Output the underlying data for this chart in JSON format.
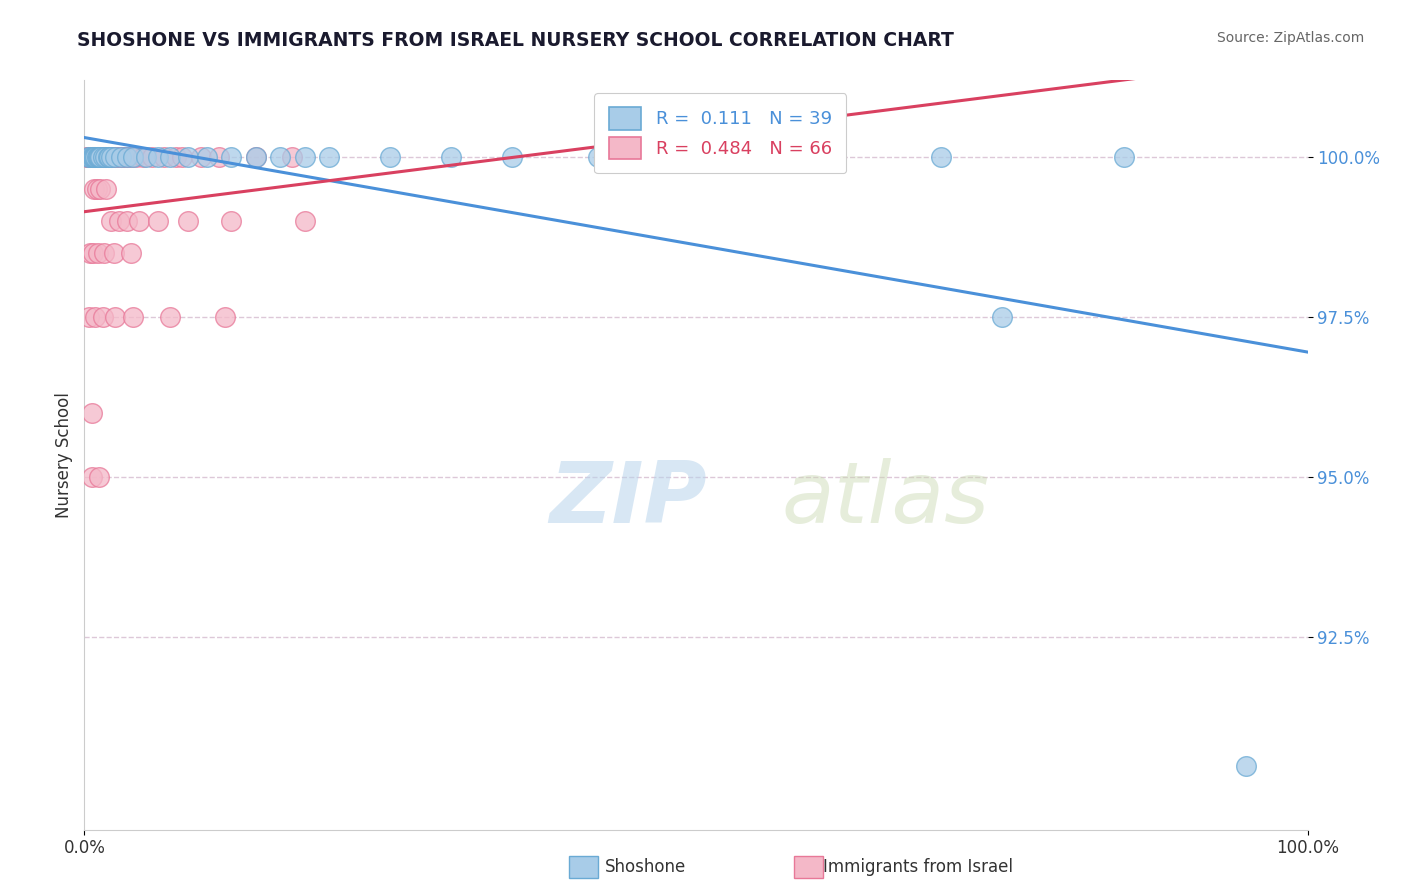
{
  "title": "SHOSHONE VS IMMIGRANTS FROM ISRAEL NURSERY SCHOOL CORRELATION CHART",
  "source_text": "Source: ZipAtlas.com",
  "ylabel": "Nursery School",
  "legend_bottom_labels": [
    "Shoshone",
    "Immigrants from Israel"
  ],
  "shoshone_R": 0.111,
  "shoshone_N": 39,
  "israel_R": 0.484,
  "israel_N": 66,
  "x_min": 0.0,
  "x_max": 100.0,
  "y_min": 89.5,
  "y_max": 101.2,
  "y_ticks": [
    92.5,
    95.0,
    97.5,
    100.0
  ],
  "y_tick_labels": [
    "92.5%",
    "95.0%",
    "97.5%",
    "100.0%"
  ],
  "x_ticks": [
    0,
    100
  ],
  "x_tick_labels": [
    "0.0%",
    "100.0%"
  ],
  "bg_color": "#ffffff",
  "watermark_zip": "ZIP",
  "watermark_atlas": "atlas",
  "shoshone_color": "#a8cce8",
  "israel_color": "#f4b8c8",
  "shoshone_edge": "#6aaad4",
  "israel_edge": "#e87898",
  "trend_blue": "#4a90d9",
  "trend_pink": "#d94060",
  "grid_color": "#ddc8d8",
  "title_color": "#1a1a2e",
  "source_color": "#666666",
  "tick_color": "#4a90d9",
  "ylabel_color": "#333333",
  "shoshone_x": [
    0.3,
    0.5,
    0.6,
    0.7,
    0.8,
    0.9,
    1.0,
    1.1,
    1.2,
    1.3,
    1.5,
    1.7,
    1.9,
    2.0,
    2.2,
    2.5,
    3.0,
    3.5,
    4.0,
    5.0,
    6.0,
    7.0,
    8.5,
    10.0,
    12.0,
    14.0,
    16.0,
    18.0,
    20.0,
    25.0,
    30.0,
    35.0,
    42.0,
    50.0,
    60.0,
    70.0,
    75.0,
    85.0,
    95.0
  ],
  "shoshone_y": [
    100.0,
    100.0,
    100.0,
    100.0,
    100.0,
    100.0,
    100.0,
    100.0,
    100.0,
    100.0,
    100.0,
    100.0,
    100.0,
    100.0,
    100.0,
    100.0,
    100.0,
    100.0,
    100.0,
    100.0,
    100.0,
    100.0,
    100.0,
    100.0,
    100.0,
    100.0,
    100.0,
    100.0,
    100.0,
    100.0,
    100.0,
    100.0,
    100.0,
    100.0,
    100.0,
    100.0,
    97.5,
    100.0,
    90.5
  ],
  "israel_x": [
    0.2,
    0.3,
    0.4,
    0.5,
    0.6,
    0.7,
    0.8,
    0.9,
    1.0,
    1.1,
    1.2,
    1.3,
    1.4,
    1.5,
    1.6,
    1.7,
    1.8,
    1.9,
    2.0,
    2.1,
    2.2,
    2.3,
    2.5,
    2.7,
    3.0,
    3.2,
    3.5,
    3.8,
    4.2,
    4.8,
    5.5,
    6.5,
    7.5,
    8.0,
    9.5,
    11.0,
    14.0,
    17.0,
    0.8,
    1.0,
    1.3,
    1.8,
    2.2,
    2.8,
    3.5,
    4.5,
    6.0,
    8.5,
    12.0,
    18.0,
    0.5,
    0.7,
    1.1,
    1.6,
    2.4,
    3.8,
    0.4,
    0.9,
    1.5,
    2.5,
    4.0,
    7.0,
    11.5,
    0.6,
    0.6,
    1.2
  ],
  "israel_y": [
    100.0,
    100.0,
    100.0,
    100.0,
    100.0,
    100.0,
    100.0,
    100.0,
    100.0,
    100.0,
    100.0,
    100.0,
    100.0,
    100.0,
    100.0,
    100.0,
    100.0,
    100.0,
    100.0,
    100.0,
    100.0,
    100.0,
    100.0,
    100.0,
    100.0,
    100.0,
    100.0,
    100.0,
    100.0,
    100.0,
    100.0,
    100.0,
    100.0,
    100.0,
    100.0,
    100.0,
    100.0,
    100.0,
    99.5,
    99.5,
    99.5,
    99.5,
    99.0,
    99.0,
    99.0,
    99.0,
    99.0,
    99.0,
    99.0,
    99.0,
    98.5,
    98.5,
    98.5,
    98.5,
    98.5,
    98.5,
    97.5,
    97.5,
    97.5,
    97.5,
    97.5,
    97.5,
    97.5,
    96.0,
    95.0,
    95.0
  ]
}
